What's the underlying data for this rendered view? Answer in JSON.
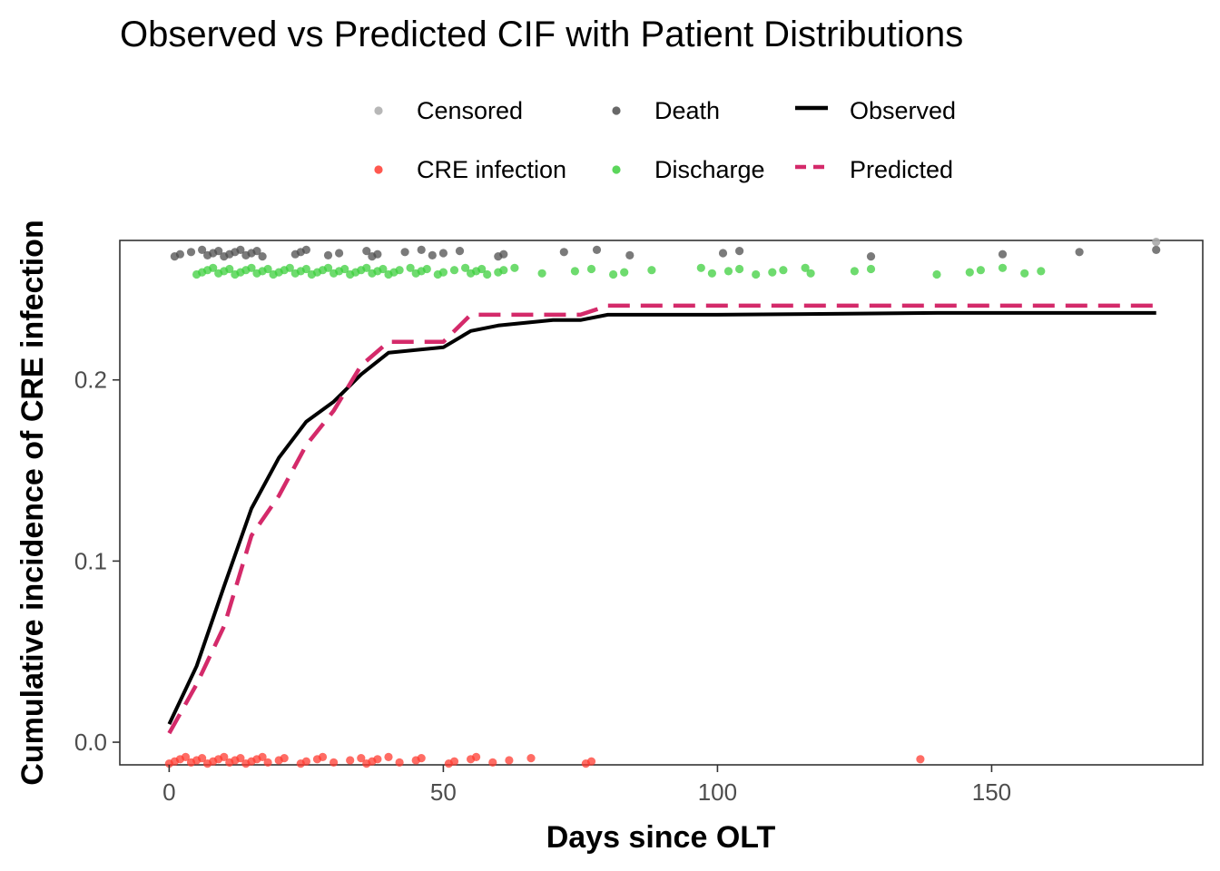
{
  "chart_data": {
    "type": "line",
    "title": "Observed vs Predicted CIF with Patient Distributions",
    "xlabel": "Days since OLT",
    "ylabel": "Cumulative incidence of CRE infection",
    "xlim": [
      -9,
      188.5
    ],
    "ylim": [
      -0.0125,
      0.277
    ],
    "x_ticks": [
      0,
      50,
      100,
      150
    ],
    "y_ticks": [
      0.0,
      0.1,
      0.2
    ],
    "x_tick_labels": [
      "0",
      "50",
      "100",
      "150"
    ],
    "y_tick_labels": [
      "0.0",
      "0.1",
      "0.2"
    ],
    "grid": false,
    "legend_position": "top",
    "legend": [
      {
        "label": "Censored",
        "kind": "point",
        "color": "#aaaaaa"
      },
      {
        "label": "CRE infection",
        "kind": "point",
        "color": "#ff3b30"
      },
      {
        "label": "Death",
        "kind": "point",
        "color": "#4d4d4d"
      },
      {
        "label": "Discharge",
        "kind": "point",
        "color": "#3ecf3e"
      },
      {
        "label": "Observed",
        "kind": "line-solid",
        "color": "#000000"
      },
      {
        "label": "Predicted",
        "kind": "line-dashed",
        "color": "#d42a6a"
      }
    ],
    "series": [
      {
        "name": "Observed",
        "style": "solid",
        "color": "#000000",
        "x": [
          0,
          5,
          10,
          15,
          20,
          25,
          30,
          35,
          40,
          50,
          55,
          60,
          70,
          75,
          80,
          100,
          140,
          180
        ],
        "y": [
          0.01,
          0.042,
          0.086,
          0.129,
          0.157,
          0.177,
          0.188,
          0.203,
          0.215,
          0.218,
          0.227,
          0.23,
          0.233,
          0.233,
          0.236,
          0.236,
          0.237,
          0.237
        ]
      },
      {
        "name": "Predicted",
        "style": "dashed",
        "color": "#d42a6a",
        "x": [
          0,
          5,
          10,
          15,
          20,
          25,
          30,
          35,
          40,
          50,
          55,
          60,
          70,
          75,
          80,
          100,
          140,
          180
        ],
        "y": [
          0.005,
          0.032,
          0.064,
          0.114,
          0.136,
          0.164,
          0.183,
          0.208,
          0.221,
          0.221,
          0.236,
          0.236,
          0.236,
          0.236,
          0.241,
          0.241,
          0.241,
          0.241
        ]
      }
    ],
    "points": {
      "Death": {
        "color": "#4d4d4d",
        "y": 0.27,
        "x": [
          1,
          2,
          4,
          6,
          7,
          8,
          9,
          10,
          11,
          12,
          13,
          14,
          15,
          16,
          17,
          23,
          24,
          25,
          29,
          31,
          36,
          37,
          38,
          43,
          46,
          48,
          50,
          53,
          60,
          61,
          72,
          78,
          84,
          101,
          104,
          128,
          152,
          166,
          180
        ]
      },
      "Discharge": {
        "color": "#3ecf3e",
        "y": 0.26,
        "x": [
          5,
          6,
          7,
          8,
          9,
          10,
          11,
          12,
          13,
          14,
          15,
          16,
          17,
          18,
          19,
          20,
          21,
          22,
          23,
          24,
          25,
          26,
          27,
          28,
          29,
          30,
          31,
          32,
          33,
          34,
          35,
          36,
          37,
          38,
          39,
          40,
          41,
          42,
          44,
          45,
          46,
          47,
          49,
          50,
          52,
          54,
          55,
          56,
          57,
          58,
          60,
          61,
          63,
          68,
          74,
          77,
          81,
          83,
          88,
          97,
          99,
          102,
          104,
          107,
          110,
          112,
          116,
          117,
          125,
          128,
          140,
          146,
          148,
          152,
          156,
          159
        ]
      },
      "CRE infection": {
        "color": "#ff3b30",
        "y": -0.01,
        "x": [
          0,
          1,
          2,
          3,
          4,
          5,
          6,
          7,
          8,
          9,
          10,
          11,
          12,
          13,
          14,
          15,
          16,
          17,
          18,
          20,
          21,
          24,
          25,
          27,
          28,
          30,
          33,
          35,
          36,
          37,
          38,
          40,
          42,
          45,
          46,
          51,
          52,
          55,
          56,
          59,
          62,
          66,
          76,
          77,
          137
        ]
      },
      "Censored": {
        "color": "#aaaaaa",
        "y": 0.278,
        "x": [
          180
        ]
      }
    }
  }
}
